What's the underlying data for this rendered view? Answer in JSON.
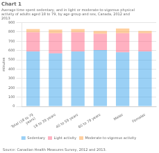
{
  "chart_data": {
    "type": "bar",
    "title": "Chart 1",
    "subtitle": "Average time spent sedentary, and in light or moderate-to-vigorous physical\nactivity of adults aged 18 to 79, by age group and sex, Canada, 2012 and\n2013",
    "y_label": "minutes",
    "source": "Source: Canadian Health Measures Survey, 2012 and 2013.",
    "categories": [
      "Total (18 to 79\nyears)",
      "18 to 39 years",
      "40 to 59 years",
      "60 to 79 years",
      "Males",
      "Females"
    ],
    "series": [
      {
        "name": "Sedentary",
        "values": [
          590,
          570,
          590,
          605,
          580,
          590
        ]
      },
      {
        "name": "Light activity",
        "values": [
          205,
          215,
          205,
          175,
          205,
          195
        ]
      },
      {
        "name": "Moderate-to-vigorous activity",
        "values": [
          35,
          40,
          35,
          30,
          50,
          25
        ]
      }
    ],
    "stacked": true,
    "ylim": [
      0,
      900
    ],
    "yticks": [
      0,
      100,
      200,
      300,
      400,
      500,
      600,
      700,
      800,
      900
    ],
    "grid": true,
    "legend": "bottom"
  }
}
